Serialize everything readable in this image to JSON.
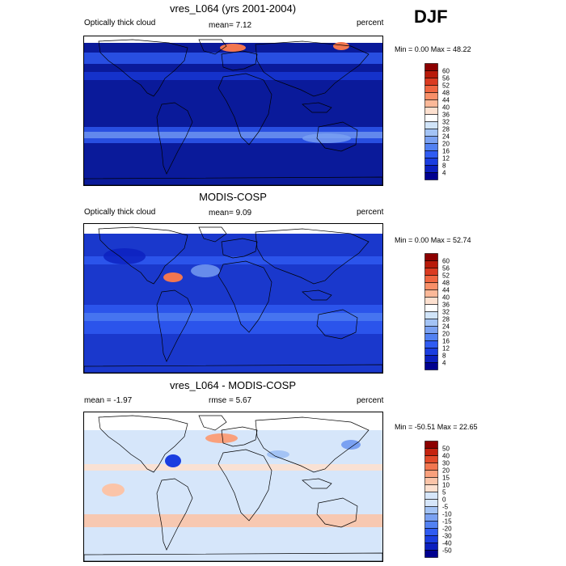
{
  "season": "DJF",
  "panels": [
    {
      "id": "model",
      "title": "vres_L064 (yrs 2001-2004)",
      "left_label": "Optically thick cloud",
      "center_label": "mean=  7.12",
      "right_label": "percent",
      "minmax": "Min =  0.00 Max =  48.22",
      "colorbar_ticks": [
        "4",
        "8",
        "12",
        "16",
        "20",
        "24",
        "28",
        "32",
        "36",
        "40",
        "44",
        "48",
        "52",
        "56",
        "60"
      ],
      "colorbar_colors": [
        "#00008f",
        "#0b1fbf",
        "#1a3de0",
        "#2f5bf2",
        "#5281f2",
        "#7aa1f2",
        "#a3c3f5",
        "#d0e4f9",
        "#ffffff",
        "#fde0cf",
        "#fbb898",
        "#f88f68",
        "#ef6540",
        "#da3a20",
        "#b81a0a",
        "#8c0000"
      ],
      "background_color": "#0a1a9a"
    },
    {
      "id": "obs",
      "title": "MODIS-COSP",
      "left_label": "Optically thick cloud",
      "center_label": "mean=  9.09",
      "right_label": "percent",
      "minmax": "Min =  0.00 Max =  52.74",
      "colorbar_ticks": [
        "4",
        "8",
        "12",
        "16",
        "20",
        "24",
        "28",
        "32",
        "36",
        "40",
        "44",
        "48",
        "52",
        "56",
        "60"
      ],
      "colorbar_colors": [
        "#00008f",
        "#0b1fbf",
        "#1a3de0",
        "#2f5bf2",
        "#5281f2",
        "#7aa1f2",
        "#a3c3f5",
        "#d0e4f9",
        "#ffffff",
        "#fde0cf",
        "#fbb898",
        "#f88f68",
        "#ef6540",
        "#da3a20",
        "#b81a0a",
        "#8c0000"
      ],
      "background_color": "#1a38cc"
    },
    {
      "id": "diff",
      "title": "vres_L064 - MODIS-COSP",
      "left_label": "mean =  -1.97",
      "center_label": "rmse =  5.67",
      "right_label": "percent",
      "minmax": "Min = -50.51 Max =  22.65",
      "colorbar_ticks": [
        "-50",
        "-40",
        "-30",
        "-20",
        "-15",
        "-10",
        "-5",
        "0",
        "5",
        "10",
        "15",
        "20",
        "30",
        "40",
        "50"
      ],
      "colorbar_colors": [
        "#00008f",
        "#0b1fbf",
        "#1a3de0",
        "#2f5bf2",
        "#5281f2",
        "#7aa1f2",
        "#a3c3f5",
        "#d6e6fa",
        "#d6e6fa",
        "#fde0cf",
        "#fbc4a8",
        "#f9a07c",
        "#f27650",
        "#e24a2a",
        "#c5230f",
        "#8c0000"
      ],
      "background_color": "#d6e6fa"
    }
  ]
}
